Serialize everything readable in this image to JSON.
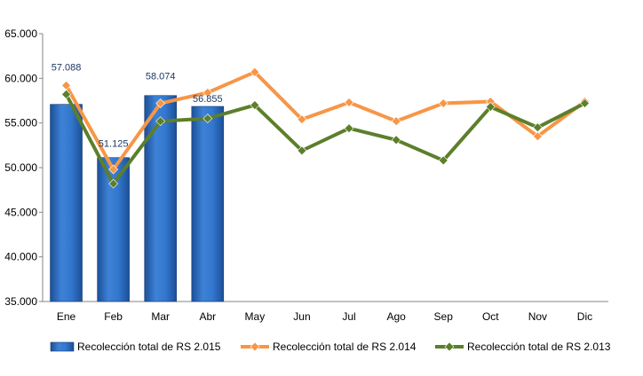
{
  "chart_data": {
    "type": "bar",
    "categories": [
      "Ene",
      "Feb",
      "Mar",
      "Abr",
      "May",
      "Jun",
      "Jul",
      "Ago",
      "Sep",
      "Oct",
      "Nov",
      "Dic"
    ],
    "ylim": [
      35000,
      65000
    ],
    "y_ticks": [
      "35.000",
      "40.000",
      "45.000",
      "50.000",
      "55.000",
      "60.000",
      "65.000"
    ],
    "grid": false,
    "legend_position": "bottom",
    "bar_series": {
      "name": "Recolección total de RS 2.015",
      "color": "#2E6FC4",
      "values": [
        57088,
        51125,
        58074,
        56855
      ],
      "value_labels": [
        "57.088",
        "51.125",
        "58.074",
        "56.855"
      ]
    },
    "line_series": [
      {
        "name": "Recolección total de RS 2.014",
        "color": "#F79646",
        "values": [
          59200,
          49800,
          57200,
          58400,
          60700,
          55400,
          57300,
          55200,
          57200,
          57400,
          53500,
          57400
        ]
      },
      {
        "name": "Recolección total de RS 2.013",
        "color": "#5C7F2B",
        "values": [
          58200,
          48200,
          55200,
          55500,
          57000,
          51900,
          54400,
          53100,
          50800,
          56800,
          54500,
          57200
        ]
      }
    ]
  }
}
